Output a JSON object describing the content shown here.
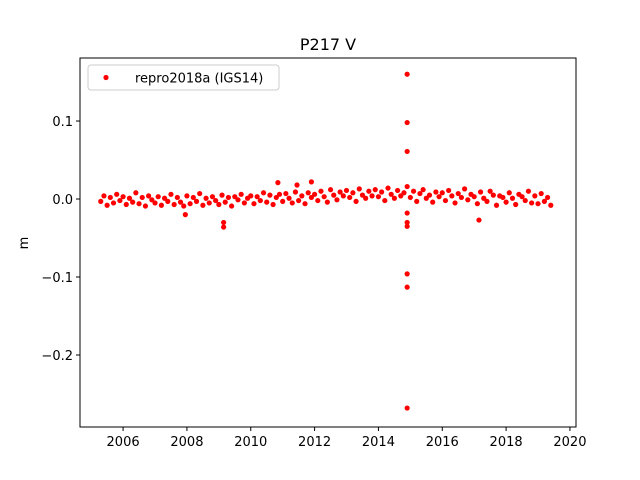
{
  "chart_data": {
    "type": "scatter",
    "title": "P217 V",
    "y_label": "m",
    "series": [
      {
        "name": "repro2018a (IGS14)",
        "color": "#ff0000",
        "x": [
          2005.3,
          2005.4,
          2005.5,
          2005.6,
          2005.7,
          2005.8,
          2005.9,
          2006.0,
          2006.1,
          2006.2,
          2006.3,
          2006.4,
          2006.5,
          2006.6,
          2006.7,
          2006.8,
          2006.9,
          2007.0,
          2007.1,
          2007.2,
          2007.3,
          2007.4,
          2007.5,
          2007.6,
          2007.7,
          2007.8,
          2007.9,
          2008.0,
          2008.1,
          2008.2,
          2008.3,
          2008.4,
          2008.5,
          2008.6,
          2008.7,
          2008.8,
          2008.9,
          2009.0,
          2009.1,
          2009.2,
          2009.3,
          2009.4,
          2009.5,
          2009.6,
          2009.7,
          2009.8,
          2009.9,
          2010.0,
          2010.1,
          2010.2,
          2010.3,
          2010.4,
          2010.5,
          2010.6,
          2010.7,
          2010.8,
          2010.9,
          2011.0,
          2011.1,
          2011.2,
          2011.3,
          2011.4,
          2011.5,
          2011.6,
          2011.7,
          2011.8,
          2011.9,
          2012.0,
          2012.1,
          2012.2,
          2012.3,
          2012.4,
          2012.5,
          2012.6,
          2012.7,
          2012.8,
          2012.9,
          2013.0,
          2013.1,
          2013.2,
          2013.3,
          2013.4,
          2013.5,
          2013.6,
          2013.7,
          2013.8,
          2013.9,
          2014.0,
          2014.1,
          2014.2,
          2014.3,
          2014.4,
          2014.5,
          2014.6,
          2014.7,
          2014.8,
          2014.9,
          2015.0,
          2015.1,
          2015.2,
          2015.3,
          2015.4,
          2015.5,
          2015.6,
          2015.7,
          2015.8,
          2015.9,
          2016.0,
          2016.1,
          2016.2,
          2016.3,
          2016.4,
          2016.5,
          2016.6,
          2016.7,
          2016.8,
          2016.9,
          2017.0,
          2017.1,
          2017.2,
          2017.3,
          2017.4,
          2017.5,
          2017.6,
          2017.7,
          2017.8,
          2017.9,
          2018.0,
          2018.1,
          2018.2,
          2018.3,
          2018.4,
          2018.5,
          2018.6,
          2018.7,
          2018.8,
          2018.9,
          2019.0,
          2019.1,
          2019.2,
          2019.3,
          2019.4,
          2014.9,
          2014.9,
          2014.9,
          2014.9,
          2014.9,
          2014.9,
          2014.9,
          2014.9,
          2014.9,
          2009.15,
          2009.15,
          2017.15,
          2007.95,
          2010.85,
          2011.45,
          2011.9
        ],
        "values": [
          -0.003,
          0.004,
          -0.008,
          0.002,
          -0.005,
          0.006,
          -0.002,
          0.003,
          -0.007,
          0.001,
          -0.004,
          0.008,
          -0.006,
          0.002,
          -0.009,
          0.004,
          -0.001,
          -0.005,
          0.003,
          -0.008,
          0.001,
          -0.003,
          0.006,
          -0.007,
          0.002,
          -0.004,
          -0.009,
          0.004,
          -0.006,
          0.002,
          -0.003,
          0.007,
          -0.008,
          0.001,
          -0.005,
          0.003,
          -0.002,
          -0.007,
          0.005,
          -0.004,
          0.002,
          -0.009,
          0.003,
          -0.001,
          0.006,
          -0.005,
          0.001,
          0.004,
          -0.006,
          0.003,
          -0.002,
          0.008,
          -0.004,
          0.005,
          -0.007,
          0.002,
          0.006,
          -0.003,
          0.007,
          0.001,
          -0.005,
          0.009,
          -0.002,
          0.004,
          -0.006,
          0.008,
          0.002,
          0.006,
          -0.002,
          0.01,
          0.003,
          -0.004,
          0.012,
          0.005,
          -0.001,
          0.009,
          0.004,
          0.011,
          0.002,
          0.008,
          -0.003,
          0.013,
          0.005,
          0.001,
          0.01,
          0.004,
          0.012,
          0.003,
          0.009,
          -0.002,
          0.014,
          0.006,
          0.001,
          0.011,
          0.004,
          0.008,
          0.016,
          0.002,
          0.01,
          -0.003,
          0.007,
          0.012,
          0.001,
          0.005,
          -0.004,
          0.009,
          0.003,
          0.008,
          -0.002,
          0.011,
          0.004,
          -0.005,
          0.007,
          0.002,
          0.013,
          -0.001,
          0.006,
          0.003,
          -0.006,
          0.009,
          0.001,
          -0.003,
          0.01,
          0.005,
          -0.008,
          0.004,
          0.002,
          -0.004,
          0.008,
          0.001,
          -0.007,
          0.006,
          0.003,
          -0.002,
          0.01,
          -0.005,
          0.004,
          -0.006,
          0.007,
          -0.003,
          0.002,
          -0.008,
          0.16,
          0.098,
          0.061,
          -0.018,
          -0.03,
          -0.035,
          -0.096,
          -0.113,
          -0.268,
          -0.03,
          -0.036,
          -0.027,
          -0.02,
          0.021,
          0.018,
          0.022
        ]
      }
    ],
    "xlim": [
      2004.65,
      2020.19
    ],
    "xticks": [
      2006,
      2008,
      2010,
      2012,
      2014,
      2016,
      2018,
      2020
    ],
    "ylim": [
      -0.2923,
      0.1808
    ],
    "yticks": [
      {
        "value": -0.2,
        "label": "−0.2"
      },
      {
        "value": -0.1,
        "label": "−0.1"
      },
      {
        "value": 0,
        "label": "0.0"
      },
      0.1
    ],
    "legend": "upper left"
  }
}
